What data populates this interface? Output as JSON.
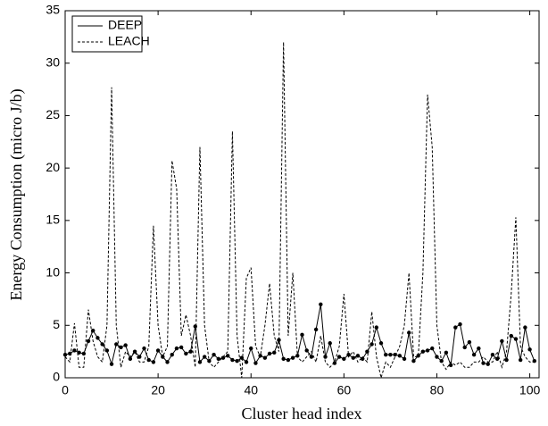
{
  "chart_data": {
    "type": "line",
    "xlabel": "Cluster head index",
    "ylabel": "Energy Consumption (micro J/b)",
    "x": [
      0,
      1,
      2,
      3,
      4,
      5,
      6,
      7,
      8,
      9,
      10,
      11,
      12,
      13,
      14,
      15,
      16,
      17,
      18,
      19,
      20,
      21,
      22,
      23,
      24,
      25,
      26,
      27,
      28,
      29,
      30,
      31,
      32,
      33,
      34,
      35,
      36,
      37,
      38,
      39,
      40,
      41,
      42,
      43,
      44,
      45,
      46,
      47,
      48,
      49,
      50,
      51,
      52,
      53,
      54,
      55,
      56,
      57,
      58,
      59,
      60,
      61,
      62,
      63,
      64,
      65,
      66,
      67,
      68,
      69,
      70,
      71,
      72,
      73,
      74,
      75,
      76,
      77,
      78,
      79,
      80,
      81,
      82,
      83,
      84,
      85,
      86,
      87,
      88,
      89,
      90,
      91,
      92,
      93,
      94,
      95,
      96,
      97,
      98,
      99,
      100,
      101
    ],
    "series": [
      {
        "name": "DEEP",
        "color": "#000000",
        "line_style": "solid",
        "markers": true,
        "values": [
          2.2,
          2.3,
          2.6,
          2.4,
          2.3,
          3.5,
          4.5,
          3.8,
          3.2,
          2.6,
          1.3,
          3.2,
          2.9,
          3.1,
          1.8,
          2.5,
          2.0,
          2.8,
          1.7,
          1.5,
          2.6,
          2.0,
          1.5,
          2.2,
          2.8,
          2.9,
          2.3,
          2.5,
          4.9,
          1.5,
          2.0,
          1.6,
          2.2,
          1.8,
          1.9,
          2.1,
          1.7,
          1.6,
          1.9,
          1.5,
          2.8,
          1.4,
          2.1,
          1.9,
          2.3,
          2.4,
          3.6,
          1.8,
          1.7,
          1.9,
          2.1,
          4.1,
          2.6,
          2.0,
          4.6,
          7.0,
          2.0,
          3.3,
          1.4,
          2.0,
          1.8,
          2.2,
          1.9,
          2.1,
          1.8,
          2.5,
          3.2,
          4.8,
          3.3,
          2.2,
          2.2,
          2.2,
          2.1,
          1.8,
          4.3,
          1.6,
          2.1,
          2.5,
          2.6,
          2.8,
          2.0,
          1.6,
          2.4,
          1.2,
          4.8,
          5.1,
          2.9,
          3.4,
          2.2,
          2.8,
          1.4,
          1.3,
          2.2,
          1.8,
          3.5,
          1.7,
          4.0,
          3.7,
          1.7,
          4.8,
          2.7,
          1.6
        ]
      },
      {
        "name": "LEACH",
        "color": "#000000",
        "line_style": "dashed",
        "markers": false,
        "values": [
          2,
          1.5,
          5.2,
          1.0,
          1.0,
          6.5,
          3.5,
          2.0,
          1.5,
          5,
          27.7,
          5,
          1.0,
          2.5,
          2,
          2.5,
          1.5,
          1.5,
          3,
          14.5,
          5,
          2,
          3,
          20.7,
          18,
          4,
          6,
          4,
          1.0,
          22,
          5,
          1.5,
          1,
          1.5,
          2,
          2.5,
          23.5,
          4,
          0,
          9.5,
          10.5,
          3,
          2,
          5,
          9,
          4,
          2.5,
          32,
          4,
          10,
          2,
          1.5,
          2,
          2.5,
          1.5,
          4,
          1.5,
          1,
          1.5,
          3,
          8,
          2,
          2.5,
          1.5,
          2,
          1.5,
          6.3,
          2,
          0,
          1.5,
          1,
          2,
          3,
          5,
          10,
          2,
          2,
          10,
          27,
          22,
          5,
          1.5,
          0.8,
          1.5,
          1.2,
          1.5,
          1,
          1,
          1.5,
          1.5,
          2,
          1.5,
          1.5,
          2.5,
          1,
          2.5,
          8,
          15.3,
          3,
          2,
          1.5,
          1.5
        ]
      }
    ],
    "xlim": [
      0,
      102
    ],
    "xticks": [
      0,
      20,
      40,
      60,
      80,
      100
    ],
    "ylim": [
      0,
      35
    ],
    "yticks": [
      0,
      5,
      10,
      15,
      20,
      25,
      30,
      35
    ],
    "legend": "upper left",
    "grid": false
  }
}
